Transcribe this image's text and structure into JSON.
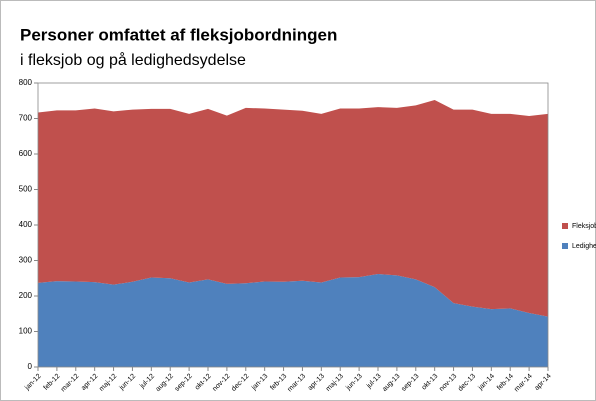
{
  "chart_data": {
    "type": "stacked_area",
    "title": "Personer omfattet af fleksjobordningen",
    "subtitle": "i fleksjob og på ledighedsydelse",
    "categories": [
      "jan-12",
      "feb-12",
      "mar-12",
      "apr-12",
      "maj-12",
      "jun-12",
      "jul-12",
      "aug-12",
      "sep-12",
      "okt-12",
      "nov-12",
      "dec-12",
      "jan-13",
      "feb-13",
      "mar-13",
      "apr-13",
      "maj-13",
      "jun-13",
      "jul-13",
      "aug-13",
      "sep-13",
      "okt-13",
      "nov-13",
      "dec-13",
      "jan-14",
      "feb-14",
      "mar-14",
      "apr-14"
    ],
    "series": [
      {
        "name": "Ledighedsydelse",
        "color": "#4f81bd",
        "values": [
          237,
          242,
          241,
          239,
          232,
          240,
          252,
          250,
          238,
          247,
          234,
          236,
          241,
          240,
          243,
          238,
          252,
          253,
          262,
          258,
          247,
          225,
          180,
          170,
          163,
          165,
          152,
          142
        ]
      },
      {
        "name": "Fleksjob",
        "color": "#c0504d",
        "values": [
          480,
          481,
          482,
          489,
          488,
          485,
          475,
          477,
          475,
          480,
          474,
          494,
          487,
          485,
          479,
          475,
          476,
          475,
          470,
          472,
          490,
          527,
          545,
          555,
          550,
          548,
          555,
          571
        ]
      }
    ],
    "ylim": [
      0,
      800
    ],
    "yticks": [
      0,
      100,
      200,
      300,
      400,
      500,
      600,
      700,
      800
    ],
    "grid": false
  }
}
